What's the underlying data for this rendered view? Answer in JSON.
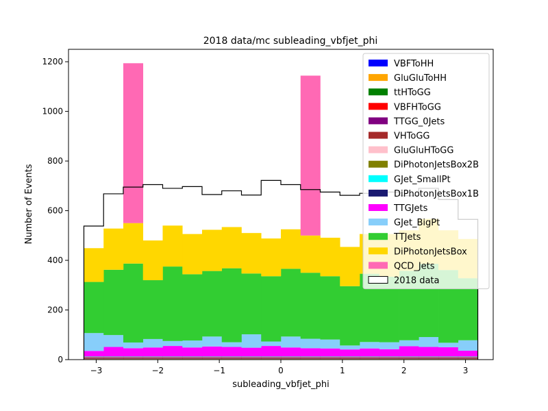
{
  "chart_data": {
    "type": "bar",
    "stacked": true,
    "title": "2018 data/mc subleading_vbfjet_phi",
    "xlabel": "subleading_vbfjet_phi",
    "ylabel": "Number of Events",
    "xlim": [
      -3.45,
      3.45
    ],
    "ylim": [
      0,
      1250
    ],
    "xticks": [
      -3,
      -2,
      -1,
      0,
      1,
      2,
      3
    ],
    "xtick_labels": [
      "−3",
      "−2",
      "−1",
      "0",
      "1",
      "2",
      "3"
    ],
    "yticks": [
      0,
      200,
      400,
      600,
      800,
      1000,
      1200
    ],
    "ytick_labels": [
      "0",
      "200",
      "400",
      "600",
      "800",
      "1000",
      "1200"
    ],
    "legend_position": "top-right",
    "bin_edges": [
      -3.2,
      -2.88,
      -2.56,
      -2.24,
      -1.92,
      -1.6,
      -1.28,
      -0.96,
      -0.64,
      -0.32,
      0.0,
      0.32,
      0.64,
      0.96,
      1.28,
      1.6,
      1.92,
      2.24,
      2.56,
      2.88,
      3.2
    ],
    "series": [
      {
        "name": "VBFToHH",
        "color": "#0000ff",
        "values": [
          2,
          2,
          2,
          2,
          2,
          2,
          2,
          2,
          2,
          2,
          2,
          2,
          2,
          2,
          2,
          2,
          2,
          2,
          2,
          2
        ]
      },
      {
        "name": "GluGluToHH",
        "color": "#ffa500",
        "values": [
          1,
          1,
          1,
          1,
          1,
          1,
          1,
          1,
          1,
          1,
          1,
          1,
          1,
          1,
          1,
          1,
          1,
          1,
          1,
          1
        ]
      },
      {
        "name": "ttHToGG",
        "color": "#008000",
        "values": [
          1,
          1,
          1,
          1,
          1,
          1,
          1,
          1,
          1,
          1,
          1,
          1,
          1,
          1,
          1,
          1,
          1,
          1,
          1,
          1
        ]
      },
      {
        "name": "VBFHToGG",
        "color": "#ff0000",
        "values": [
          1,
          1,
          1,
          1,
          1,
          1,
          1,
          1,
          1,
          1,
          1,
          1,
          1,
          1,
          1,
          1,
          1,
          1,
          1,
          1
        ]
      },
      {
        "name": "TTGG_0Jets",
        "color": "#800080",
        "values": [
          3,
          3,
          3,
          3,
          3,
          3,
          3,
          3,
          3,
          3,
          3,
          3,
          3,
          3,
          3,
          3,
          3,
          3,
          3,
          3
        ]
      },
      {
        "name": "VHToGG",
        "color": "#a52a2a",
        "values": [
          1,
          1,
          1,
          1,
          1,
          1,
          1,
          1,
          1,
          1,
          1,
          1,
          1,
          1,
          1,
          1,
          1,
          1,
          1,
          1
        ]
      },
      {
        "name": "GluGluHToGG",
        "color": "#ffc0cb",
        "values": [
          1,
          1,
          1,
          1,
          1,
          1,
          1,
          1,
          1,
          1,
          1,
          1,
          1,
          1,
          1,
          1,
          1,
          1,
          1,
          1
        ]
      },
      {
        "name": "DiPhotonJetsBox2B",
        "color": "#808000",
        "values": [
          1,
          1,
          1,
          1,
          1,
          1,
          1,
          1,
          1,
          1,
          1,
          1,
          1,
          1,
          1,
          1,
          1,
          1,
          1,
          1
        ]
      },
      {
        "name": "GJet_SmallPt",
        "color": "#00ffff",
        "values": [
          1,
          1,
          1,
          1,
          1,
          1,
          1,
          1,
          1,
          1,
          1,
          1,
          1,
          1,
          1,
          1,
          1,
          1,
          1,
          1
        ]
      },
      {
        "name": "DiPhotonJetsBox1B",
        "color": "#191970",
        "values": [
          1,
          1,
          1,
          1,
          1,
          1,
          1,
          1,
          1,
          1,
          1,
          1,
          1,
          1,
          1,
          1,
          1,
          1,
          1,
          1
        ]
      },
      {
        "name": "TTGJets",
        "color": "#ff00ff",
        "values": [
          22,
          38,
          33,
          36,
          42,
          36,
          40,
          38,
          35,
          42,
          36,
          33,
          32,
          28,
          32,
          29,
          41,
          38,
          37,
          23
        ]
      },
      {
        "name": "GJet_BigPt",
        "color": "#87cefa",
        "values": [
          72,
          48,
          23,
          34,
          20,
          28,
          40,
          19,
          54,
          18,
          44,
          38,
          36,
          16,
          26,
          28,
          24,
          40,
          18,
          42
        ]
      },
      {
        "name": "TTJets",
        "color": "#32cd32",
        "values": [
          206,
          263,
          318,
          237,
          300,
          267,
          264,
          298,
          245,
          263,
          273,
          266,
          255,
          239,
          275,
          264,
          280,
          295,
          293,
          250
        ]
      },
      {
        "name": "DiPhotonJetsBox",
        "color": "#ffd700",
        "values": [
          136,
          166,
          163,
          160,
          165,
          162,
          166,
          166,
          163,
          152,
          159,
          150,
          155,
          158,
          160,
          172,
          163,
          181,
          160,
          158
        ]
      },
      {
        "name": "QCD_Jets",
        "color": "#ff69b4",
        "values": [
          0,
          0,
          644,
          0,
          0,
          0,
          0,
          0,
          0,
          0,
          0,
          644,
          0,
          0,
          0,
          0,
          0,
          0,
          0,
          0
        ]
      }
    ],
    "data_series": {
      "name": "2018 data",
      "values": [
        538,
        668,
        695,
        705,
        690,
        697,
        665,
        680,
        663,
        722,
        705,
        685,
        675,
        662,
        670,
        675,
        660,
        690,
        645,
        565
      ]
    }
  }
}
